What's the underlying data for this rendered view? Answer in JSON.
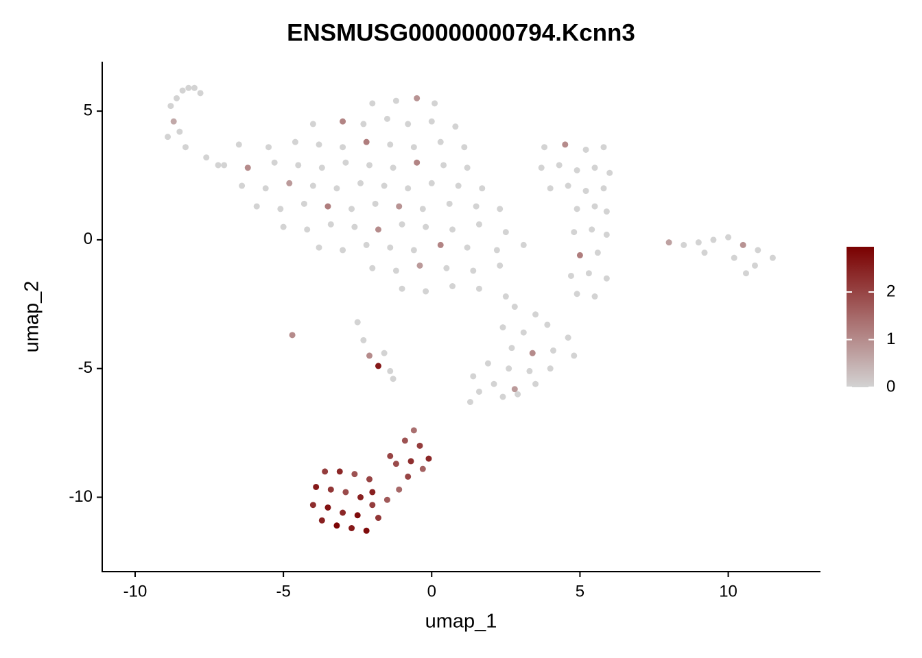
{
  "chart_data": {
    "type": "scatter",
    "title": "ENSMUSG00000000794.Kcnn3",
    "xlabel": "umap_1",
    "ylabel": "umap_2",
    "xlim": [
      -11.11,
      13.11
    ],
    "ylim": [
      -12.89,
      6.92
    ],
    "xticks": [
      -10,
      -5,
      0,
      5,
      10
    ],
    "yticks": [
      -10,
      -5,
      0,
      5
    ],
    "grid": false,
    "color_low": "#d3d3d3",
    "color_high": "#7a0000",
    "colorlim": [
      0,
      2.95
    ],
    "colorticks": [
      0,
      1,
      2
    ],
    "x": [
      -8.8,
      -8.6,
      -8.4,
      -8.2,
      -8.0,
      -7.8,
      -8.7,
      -8.5,
      -8.9,
      -8.3,
      -7.6,
      -7.2,
      -2,
      -1.2,
      -0.5,
      0.1,
      -4,
      -3,
      -2.3,
      -1.5,
      -0.8,
      0,
      0.8,
      -6.5,
      -5.5,
      -4.6,
      -3.8,
      -3,
      -2.2,
      -1.4,
      -0.6,
      0.3,
      1.1,
      -7,
      -6.2,
      -5.3,
      -4.5,
      -3.7,
      -2.9,
      -2.1,
      -1.3,
      -0.5,
      0.4,
      1.2,
      -6.4,
      -5.6,
      -4.8,
      -4,
      -3.2,
      -2.4,
      -1.6,
      -0.8,
      0,
      0.9,
      1.7,
      -5.9,
      -5.1,
      -4.3,
      -3.5,
      -2.7,
      -1.9,
      -1.1,
      -0.3,
      0.6,
      1.5,
      2.3,
      -5,
      -4.2,
      -3.4,
      -2.6,
      -1.8,
      -1,
      -0.2,
      0.7,
      1.6,
      2.5,
      -3.8,
      -3,
      -2.2,
      -1.4,
      -0.6,
      0.3,
      1.2,
      2.2,
      3.1,
      -2,
      -1.2,
      -0.4,
      0.5,
      1.4,
      2.3,
      -1,
      -0.2,
      0.7,
      1.6,
      2.5,
      3.8,
      4.5,
      5.2,
      5.8,
      3.7,
      4.3,
      4.9,
      5.5,
      6.0,
      4.0,
      4.6,
      5.2,
      5.8,
      4.9,
      5.5,
      5.9,
      4.8,
      5.4,
      5.9,
      5.0,
      5.6,
      4.7,
      5.3,
      5.9,
      4.9,
      5.5,
      2.8,
      3.5,
      2.4,
      3.1,
      3.9,
      4.6,
      2.7,
      3.4,
      4.1,
      4.8,
      1.9,
      2.6,
      3.3,
      4.0,
      1.4,
      2.1,
      2.8,
      3.5,
      1.6,
      2.4,
      1.3,
      2.9,
      8,
      8.5,
      9,
      9.5,
      10,
      10.5,
      11,
      11.5,
      9.2,
      10.2,
      10.6,
      10.9,
      -2.5,
      -2.3,
      -2.1,
      -1.8,
      -1.6,
      -1.4,
      -1.3,
      -4.7,
      -3.6,
      -3.1,
      -2.6,
      -2.1,
      -3.9,
      -3.4,
      -2.9,
      -2.4,
      -4.0,
      -3.5,
      -3.0,
      -2.5,
      -2.0,
      -3.7,
      -3.2,
      -2.7,
      -2.2,
      -1.8,
      -1.5,
      -1.1,
      -0.8,
      -1.2,
      -0.7,
      -0.3,
      -0.1,
      -0.4,
      -0.9,
      -0.6,
      -1.4,
      -2.0
    ],
    "y": [
      5.2,
      5.5,
      5.8,
      5.9,
      5.9,
      5.7,
      4.6,
      4.2,
      4.0,
      3.6,
      3.2,
      2.9,
      5.3,
      5.4,
      5.5,
      5.3,
      4.5,
      4.6,
      4.5,
      4.7,
      4.5,
      4.6,
      4.4,
      3.7,
      3.6,
      3.8,
      3.7,
      3.6,
      3.8,
      3.7,
      3.6,
      3.8,
      3.6,
      2.9,
      2.8,
      3.0,
      2.9,
      2.8,
      3.0,
      2.9,
      2.8,
      3.0,
      2.9,
      2.8,
      2.1,
      2.0,
      2.2,
      2.1,
      2.0,
      2.2,
      2.1,
      2.0,
      2.2,
      2.1,
      2.0,
      1.3,
      1.2,
      1.4,
      1.3,
      1.2,
      1.4,
      1.3,
      1.2,
      1.4,
      1.3,
      1.2,
      0.5,
      0.4,
      0.6,
      0.5,
      0.4,
      0.6,
      0.5,
      0.4,
      0.6,
      0.3,
      -0.3,
      -0.4,
      -0.2,
      -0.3,
      -0.4,
      -0.2,
      -0.3,
      -0.4,
      -0.2,
      -1.1,
      -1.2,
      -1.0,
      -1.1,
      -1.2,
      -1.0,
      -1.9,
      -2.0,
      -1.8,
      -1.9,
      -2.2,
      3.6,
      3.7,
      3.5,
      3.6,
      2.8,
      2.9,
      2.7,
      2.8,
      2.6,
      2.0,
      2.1,
      1.9,
      2.0,
      1.2,
      1.3,
      1.1,
      0.3,
      0.4,
      0.2,
      -0.6,
      -0.5,
      -1.4,
      -1.3,
      -1.5,
      -2.1,
      -2.2,
      -2.6,
      -2.9,
      -3.4,
      -3.6,
      -3.3,
      -3.8,
      -4.2,
      -4.4,
      -4.3,
      -4.5,
      -4.8,
      -5.0,
      -5.1,
      -5.0,
      -5.3,
      -5.6,
      -5.8,
      -5.6,
      -5.9,
      -6.1,
      -6.3,
      -6.0,
      -0.1,
      -0.2,
      -0.1,
      0,
      0.1,
      -0.2,
      -0.4,
      -0.7,
      -0.5,
      -0.7,
      -1.3,
      -1.0,
      -3.2,
      -3.9,
      -4.5,
      -4.9,
      -4.4,
      -5.1,
      -5.4,
      -3.7,
      -9.0,
      -9.0,
      -9.1,
      -9.3,
      -9.6,
      -9.7,
      -9.8,
      -10.0,
      -10.3,
      -10.4,
      -10.6,
      -10.7,
      -10.3,
      -10.9,
      -11.1,
      -11.2,
      -11.3,
      -10.8,
      -10.1,
      -9.7,
      -9.2,
      -8.7,
      -8.6,
      -8.9,
      -8.5,
      -8.0,
      -7.8,
      -7.4,
      -8.4,
      -9.8
    ],
    "values": [
      0,
      0,
      0,
      0,
      0,
      0,
      0.6,
      0,
      0,
      0,
      0,
      0,
      0,
      0,
      0.9,
      0,
      0,
      1.1,
      0,
      0,
      0,
      0,
      0,
      0,
      0,
      0,
      0,
      0,
      1.2,
      0,
      0,
      0,
      0,
      0,
      1.0,
      0,
      0,
      0,
      0,
      0,
      0,
      1.1,
      0,
      0,
      0,
      0,
      0.8,
      0,
      0,
      0,
      0,
      0,
      0,
      0,
      0,
      0,
      0,
      0,
      1.2,
      0,
      0,
      0.9,
      0,
      0,
      0,
      0,
      0,
      0,
      0,
      0,
      1.0,
      0,
      0,
      0,
      0,
      0,
      0,
      0,
      0,
      0,
      0,
      1.1,
      0,
      0,
      0,
      0,
      0,
      0.8,
      0,
      0,
      0,
      0,
      0,
      0,
      0,
      0,
      0,
      1.0,
      0,
      0,
      0,
      0,
      0,
      0,
      0,
      0,
      0,
      0,
      0,
      0,
      0,
      0,
      0,
      0,
      0,
      1.2,
      0,
      0,
      0,
      0,
      0,
      0,
      0,
      0,
      0,
      0,
      0,
      0,
      0,
      1.0,
      0,
      0,
      0,
      0,
      0,
      0,
      0,
      0,
      0.8,
      0,
      0,
      0,
      0,
      0,
      0.7,
      0,
      0,
      0,
      0,
      0.9,
      0,
      0,
      0,
      0,
      0,
      0,
      0,
      0,
      1.0,
      2.6,
      0,
      0,
      0,
      1.0,
      2.1,
      2.4,
      1.8,
      2.0,
      2.6,
      2.2,
      1.9,
      2.5,
      2.3,
      2.7,
      2.4,
      2.8,
      2.1,
      2.5,
      2.9,
      2.6,
      2.8,
      2.2,
      1.7,
      1.5,
      2.0,
      1.9,
      2.3,
      1.6,
      2.4,
      2.1,
      1.8,
      1.4,
      2.0,
      2.5
    ]
  }
}
